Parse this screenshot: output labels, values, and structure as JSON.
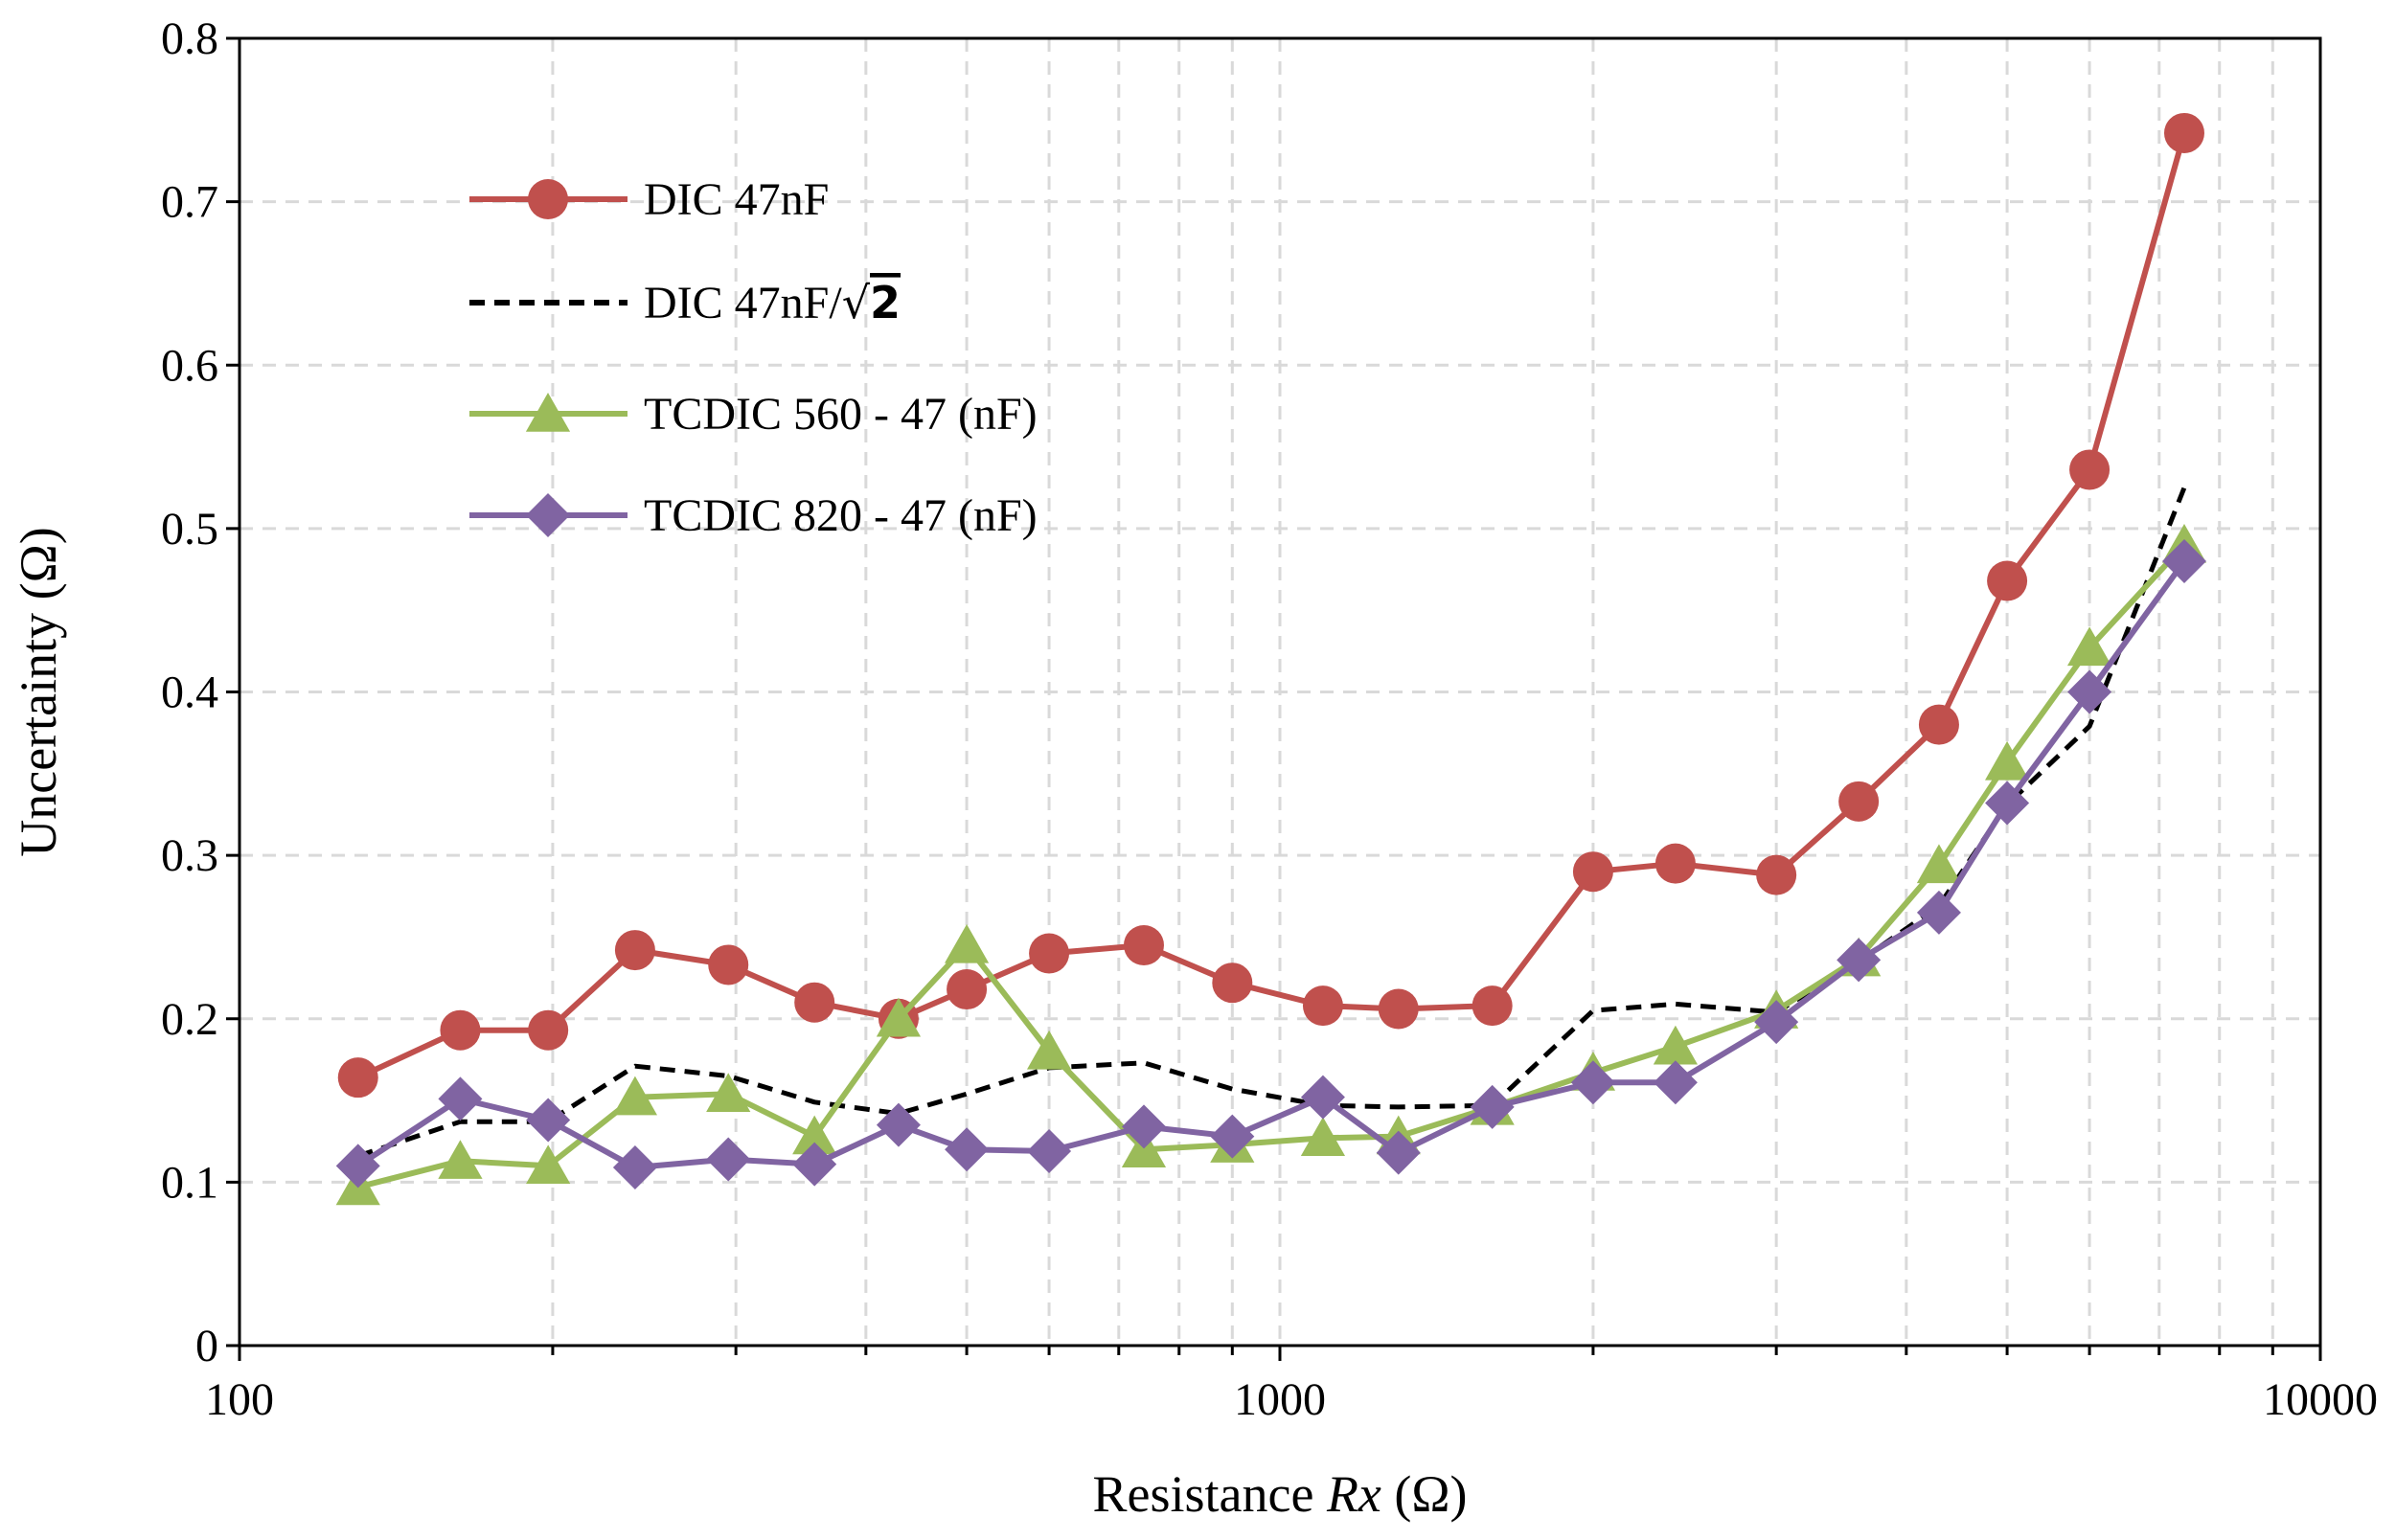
{
  "chart_data": {
    "type": "line",
    "title": "",
    "xlabel_prefix": "Resistance ",
    "xlabel_var": "Rx",
    "xlabel_suffix": " (Ω)",
    "ylabel": "Uncertainty (Ω)",
    "xscale": "log",
    "xlim": [
      100,
      10000
    ],
    "ylim": [
      0,
      0.8
    ],
    "xticks": [
      "100",
      "1000",
      "10000"
    ],
    "yticks": [
      "0",
      "0.1",
      "0.2",
      "0.3",
      "0.4",
      "0.5",
      "0.6",
      "0.7",
      "0.8"
    ],
    "grid": true,
    "legend_position": "top-left",
    "series": [
      {
        "name": "DIC 47nF",
        "color": "#c0504d",
        "marker": "circle",
        "dash": "solid",
        "x": [
          130,
          163,
          198,
          240,
          295,
          357,
          430,
          500,
          600,
          740,
          900,
          1100,
          1300,
          1600,
          2000,
          2400,
          3000,
          3600,
          4300,
          5000,
          6000,
          7400
        ],
        "y": [
          0.164,
          0.193,
          0.193,
          0.242,
          0.233,
          0.21,
          0.2,
          0.218,
          0.24,
          0.245,
          0.222,
          0.208,
          0.206,
          0.208,
          0.29,
          0.295,
          0.288,
          0.333,
          0.38,
          0.468,
          0.536,
          0.742
        ]
      },
      {
        "name": "DIC 47nF/",
        "name_sqrt_symbol": "√",
        "name_sqrt_value": "2",
        "color": "#000000",
        "marker": "none",
        "dash": "dashed",
        "x": [
          130,
          163,
          198,
          240,
          295,
          357,
          430,
          500,
          600,
          740,
          900,
          1100,
          1300,
          1600,
          2000,
          2400,
          3000,
          3600,
          4300,
          5000,
          6000,
          7400
        ],
        "y": [
          0.116,
          0.137,
          0.137,
          0.171,
          0.165,
          0.149,
          0.142,
          0.154,
          0.17,
          0.173,
          0.157,
          0.147,
          0.146,
          0.147,
          0.205,
          0.209,
          0.204,
          0.235,
          0.269,
          0.331,
          0.379,
          0.525
        ]
      },
      {
        "name": "TCDIC 560 - 47 (nF)",
        "color": "#9bbb59",
        "marker": "triangle",
        "dash": "solid",
        "x": [
          130,
          163,
          198,
          240,
          295,
          357,
          430,
          500,
          600,
          740,
          900,
          1100,
          1300,
          1600,
          2000,
          2400,
          3000,
          3600,
          4300,
          5000,
          6000,
          7400
        ],
        "y": [
          0.097,
          0.113,
          0.11,
          0.152,
          0.154,
          0.128,
          0.2,
          0.245,
          0.18,
          0.12,
          0.123,
          0.127,
          0.128,
          0.146,
          0.167,
          0.183,
          0.205,
          0.237,
          0.294,
          0.357,
          0.427,
          0.49
        ]
      },
      {
        "name": "TCDIC 820 - 47 (nF)",
        "color": "#8064a2",
        "marker": "diamond",
        "dash": "solid",
        "x": [
          130,
          163,
          198,
          240,
          295,
          357,
          430,
          500,
          600,
          740,
          900,
          1100,
          1300,
          1600,
          2000,
          2400,
          3000,
          3600,
          4300,
          5000,
          6000,
          7400
        ],
        "y": [
          0.11,
          0.151,
          0.138,
          0.109,
          0.114,
          0.111,
          0.135,
          0.12,
          0.119,
          0.134,
          0.128,
          0.152,
          0.118,
          0.146,
          0.161,
          0.161,
          0.198,
          0.236,
          0.265,
          0.332,
          0.4,
          0.48
        ]
      }
    ]
  }
}
